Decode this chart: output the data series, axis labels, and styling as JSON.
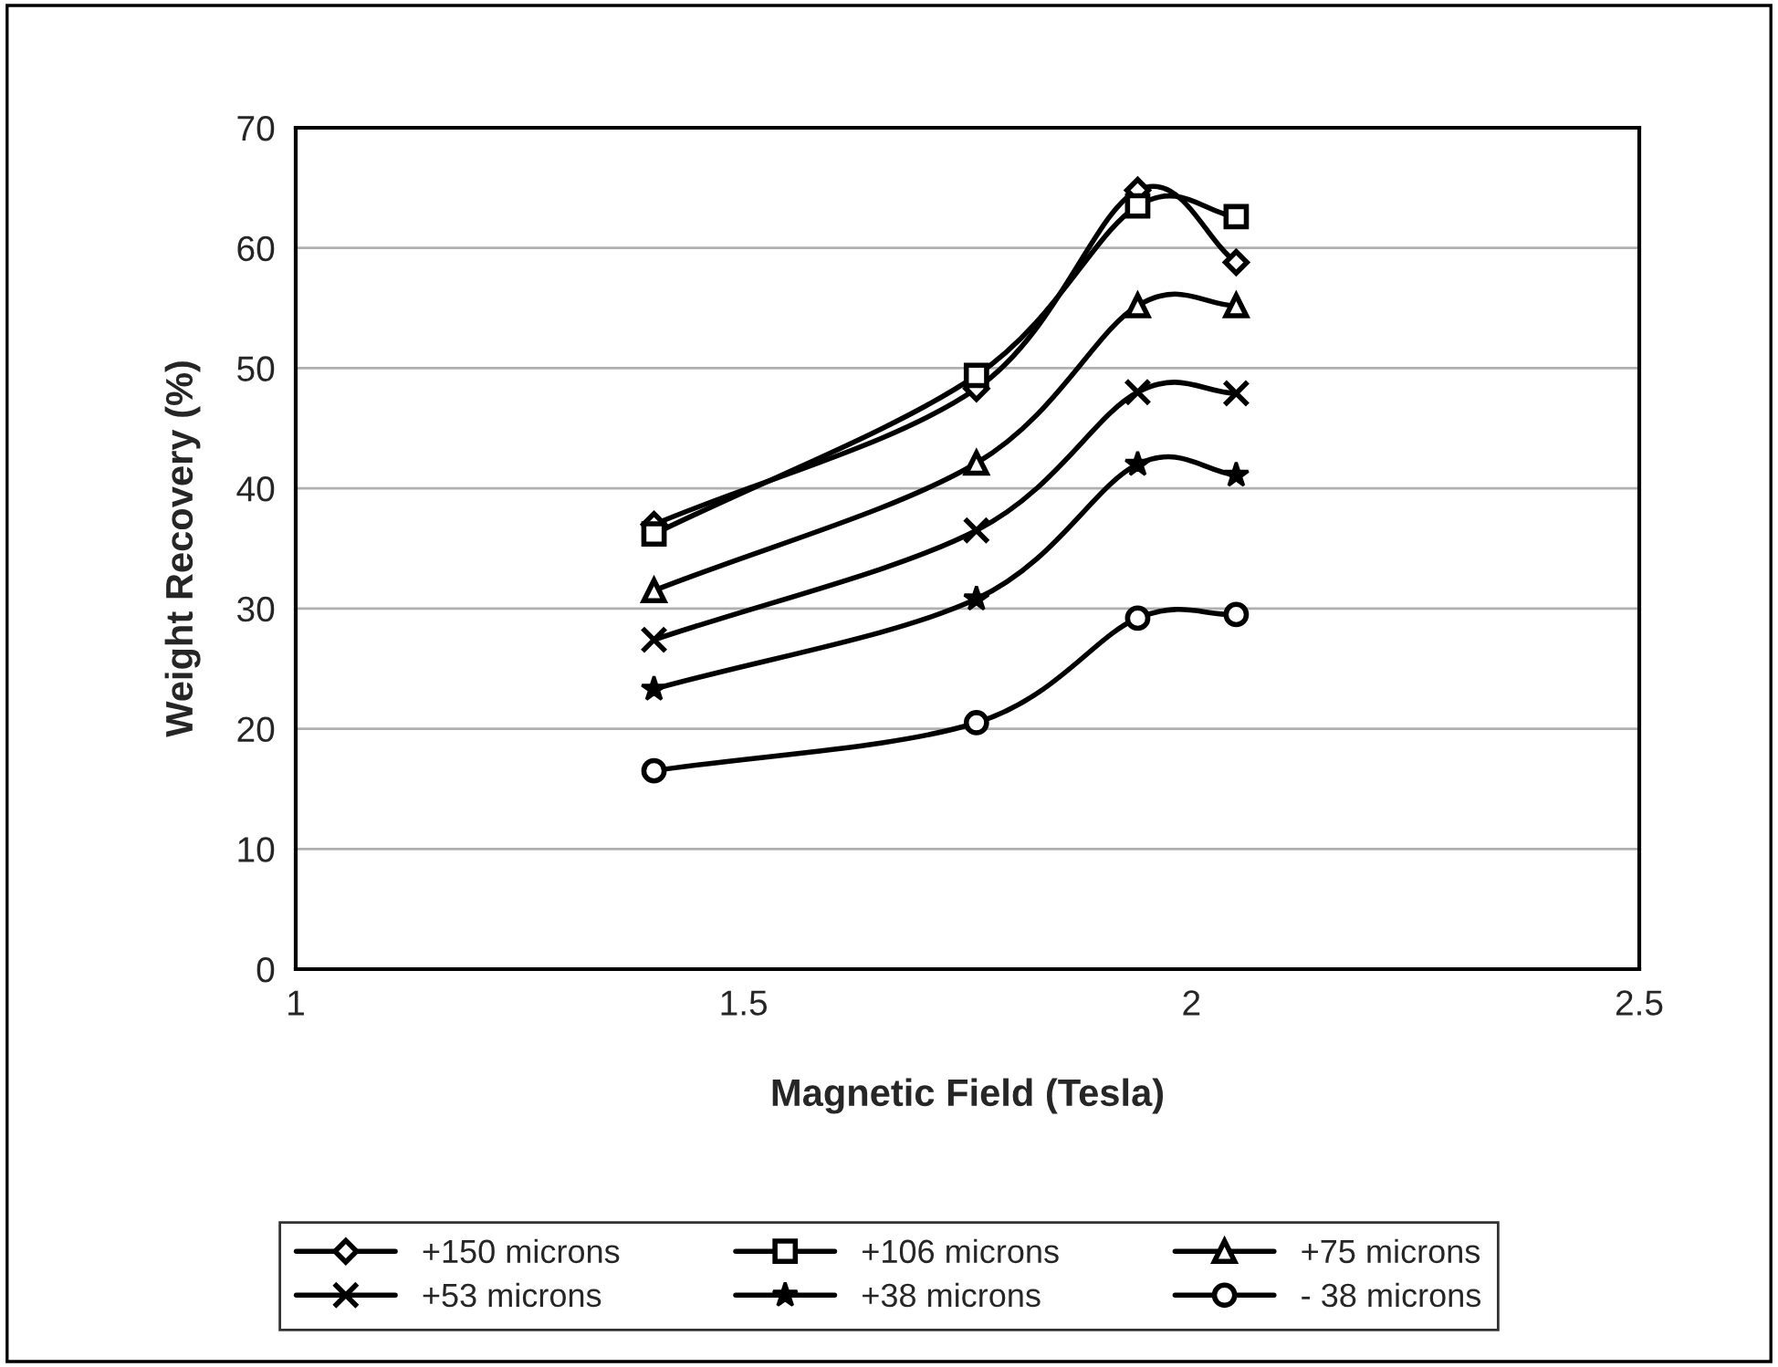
{
  "chart_data": {
    "type": "line",
    "xlabel": "Magnetic Field (Tesla)",
    "ylabel": "Weight Recovery (%)",
    "x": [
      1.4,
      1.76,
      1.94,
      2.05
    ],
    "series": [
      {
        "name": "+150 microns",
        "color": "#000000",
        "marker": "diamond",
        "values": [
          37.0,
          48.3,
          64.8,
          58.8
        ]
      },
      {
        "name": "+106 microns",
        "color": "#000000",
        "marker": "square",
        "values": [
          36.2,
          49.4,
          63.5,
          62.6
        ]
      },
      {
        "name": "+75 microns",
        "color": "#000000",
        "marker": "triangle",
        "values": [
          31.5,
          42.1,
          55.2,
          55.2
        ]
      },
      {
        "name": "+53 microns",
        "color": "#000000",
        "marker": "cross",
        "values": [
          27.4,
          36.5,
          48.0,
          47.9
        ]
      },
      {
        "name": "+38 microns",
        "color": "#000000",
        "marker": "star",
        "values": [
          23.3,
          30.8,
          42.0,
          41.1
        ]
      },
      {
        "name": "- 38 microns",
        "color": "#000000",
        "marker": "circle",
        "values": [
          16.5,
          20.5,
          29.2,
          29.5
        ]
      }
    ],
    "xlim": [
      1,
      2.5
    ],
    "xticks": [
      1,
      1.5,
      2,
      2.5
    ],
    "ylim": [
      0,
      70
    ],
    "yticks": [
      0,
      10,
      20,
      30,
      40,
      50,
      60,
      70
    ],
    "grid": "y",
    "legend": "bottom",
    "line_style": "solid"
  }
}
